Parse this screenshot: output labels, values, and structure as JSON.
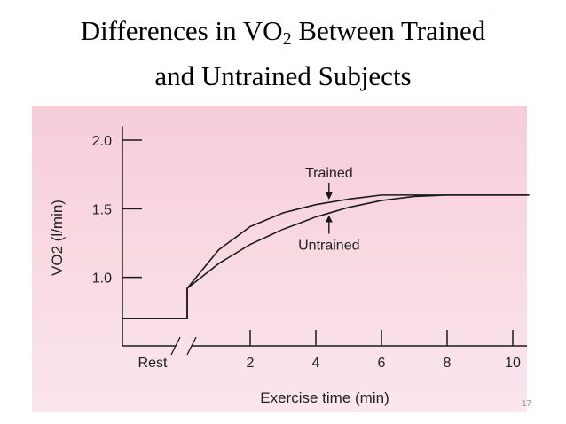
{
  "slide": {
    "title_line1_pre": "Differences in VO",
    "title_sub": "2",
    "title_line1_post": " Between Trained",
    "title_line2": "and Untrained Subjects",
    "page_number": "17"
  },
  "colors": {
    "plot_background_top": "#f6cdd8",
    "plot_background_bottom": "#fbe6ee",
    "line": "#1a1a1a"
  },
  "chart_data": {
    "type": "line",
    "xlabel": "Exercise time (min)",
    "ylabel": "VO2 (l/min)",
    "x_tick_labels": [
      {
        "x": -1,
        "label": "Rest"
      },
      {
        "x": 2,
        "label": "2"
      },
      {
        "x": 4,
        "label": "4"
      },
      {
        "x": 6,
        "label": "6"
      },
      {
        "x": 8,
        "label": "8"
      },
      {
        "x": 10,
        "label": "10"
      }
    ],
    "y_ticks": [
      {
        "y": 1.0,
        "label": "1.0"
      },
      {
        "y": 1.5,
        "label": "1.5"
      },
      {
        "y": 2.0,
        "label": "2.0"
      }
    ],
    "xlim": [
      -2,
      10.5
    ],
    "ylim": [
      0.5,
      2.1
    ],
    "x_axis_break": true,
    "grid": false,
    "series": [
      {
        "name": "Trained",
        "x": [
          -2,
          0,
          0,
          1,
          2,
          3,
          4,
          5,
          6,
          7,
          8,
          9,
          10.5
        ],
        "y": [
          0.7,
          0.7,
          0.92,
          1.2,
          1.37,
          1.47,
          1.53,
          1.57,
          1.6,
          1.6,
          1.6,
          1.6,
          1.6
        ]
      },
      {
        "name": "Untrained",
        "x": [
          -2,
          0,
          0,
          1,
          2,
          3,
          4,
          5,
          6,
          7,
          8,
          9,
          10.5
        ],
        "y": [
          0.7,
          0.7,
          0.92,
          1.1,
          1.24,
          1.35,
          1.44,
          1.51,
          1.56,
          1.59,
          1.6,
          1.6,
          1.6
        ]
      }
    ],
    "annotations": [
      {
        "text": "Trained",
        "series": "Trained",
        "x": 4.4,
        "y": 1.56,
        "direction": "down"
      },
      {
        "text": "Untrained",
        "series": "Untrained",
        "x": 4.4,
        "y": 1.46,
        "direction": "up"
      }
    ]
  }
}
